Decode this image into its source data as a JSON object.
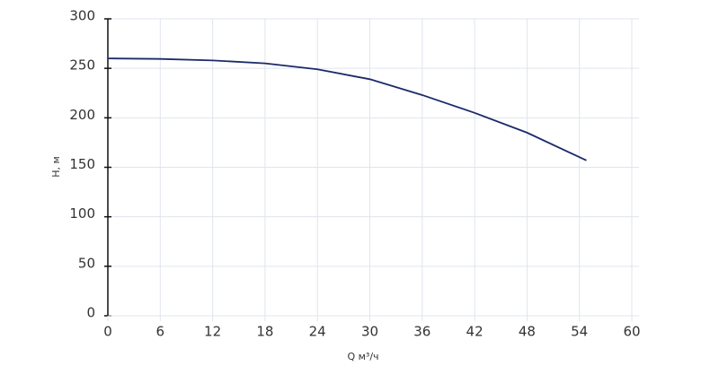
{
  "chart_data": {
    "type": "line",
    "x_label": "Q м³/ч",
    "y_label": "H, м",
    "x": [
      0,
      6,
      12,
      18,
      24,
      30,
      36,
      42,
      48,
      54.8
    ],
    "series": [
      {
        "color": "#1b2a6b",
        "values": [
          260,
          259.5,
          258,
          255,
          249,
          239,
          223,
          205,
          185,
          157
        ]
      }
    ],
    "xlim": [
      0,
      60
    ],
    "xticks": [
      0,
      6,
      12,
      18,
      24,
      30,
      36,
      42,
      48,
      54,
      60
    ],
    "ylim": [
      0,
      300
    ],
    "yticks": [
      0,
      50,
      100,
      150,
      200,
      250,
      300
    ],
    "grid": true
  }
}
